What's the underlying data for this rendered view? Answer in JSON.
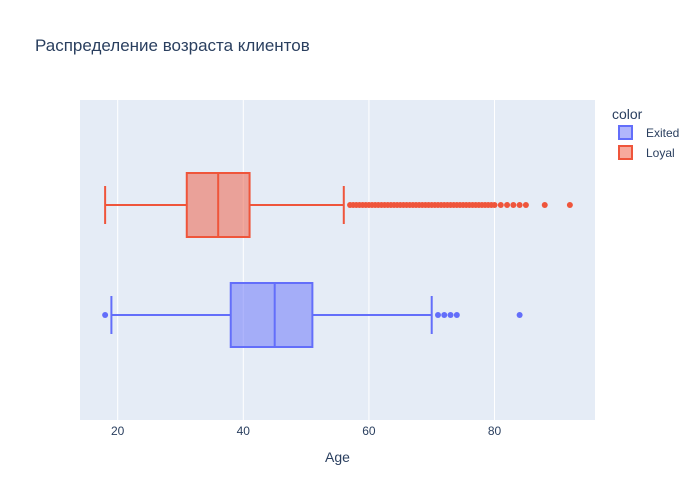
{
  "chart_data": {
    "type": "box",
    "orientation": "horizontal",
    "title": "Распределение возраста  клиентов",
    "xlabel": "Age",
    "ylabel": "",
    "xlim": [
      14,
      96
    ],
    "x_ticks": [
      20,
      40,
      60,
      80
    ],
    "grid": true,
    "legend": {
      "title": "color",
      "placement": "top-right",
      "items": [
        "Exited",
        "Loyal"
      ]
    },
    "series": [
      {
        "name": "Loyal",
        "color": "#EF553B",
        "min": 18,
        "q1": 31,
        "median": 36,
        "q3": 41,
        "max": 56,
        "outliers": [
          57,
          57.5,
          58,
          58.5,
          59,
          59.5,
          60,
          60.5,
          61,
          61.5,
          62,
          62.5,
          63,
          63.5,
          64,
          64.5,
          65,
          65.5,
          66,
          66.5,
          67,
          67.5,
          68,
          68.5,
          69,
          69.5,
          70,
          70.5,
          71,
          71.5,
          72,
          72.5,
          73,
          73.5,
          74,
          74.5,
          75,
          75.5,
          76,
          76.5,
          77,
          77.5,
          78,
          78.5,
          79,
          79.5,
          80,
          81,
          82,
          83,
          84,
          85,
          88,
          92
        ]
      },
      {
        "name": "Exited",
        "color": "#636EFA",
        "min": 19,
        "q1": 38,
        "median": 45,
        "q3": 51,
        "max": 70,
        "outliers": [
          18,
          71,
          72,
          73,
          74,
          84
        ]
      }
    ]
  }
}
